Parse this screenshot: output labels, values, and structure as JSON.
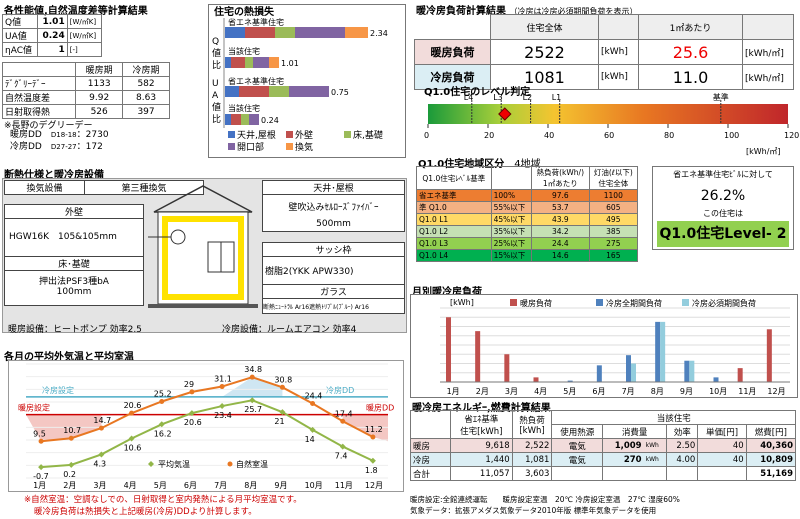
{
  "perf": {
    "title": "各性能値,自然温度差等計算結果",
    "rows": [
      {
        "k": "Q値",
        "v": "1.01",
        "u": "[W/㎡K]"
      },
      {
        "k": "UA値",
        "v": "0.24",
        "u": "[W/㎡K]"
      },
      {
        "k": "ηAC値",
        "v": "1",
        "u": "[-]"
      }
    ],
    "cols": [
      "暖房期",
      "冷房期"
    ],
    "stats": [
      {
        "k": "ﾃﾞｸﾞﾘｰﾃﾞｰ",
        "h": "1133",
        "c": "582"
      },
      {
        "k": "自然温度差",
        "h": "9.92",
        "c": "8.63"
      },
      {
        "k": "日射取得熱",
        "h": "526",
        "c": "397"
      }
    ],
    "note": "※長野のデグリーデー",
    "dd": [
      {
        "k": "暖房DD",
        "s": "D18-18",
        "v": "2730"
      },
      {
        "k": "冷房DD",
        "s": "D27-27",
        "v": "172"
      }
    ]
  },
  "heatloss": {
    "title": "住宅の熱損失",
    "labels": {
      "q": "Q値比",
      "ua": "UA値比",
      "std": "省エネ基準住宅",
      "house": "当該住宅"
    },
    "values": {
      "q_std": "2.34",
      "q_house": "1.01",
      "ua_std": "0.75",
      "ua_house": "0.24"
    },
    "legend": [
      {
        "n": "天井,屋根",
        "c": "#4472c4"
      },
      {
        "n": "外壁",
        "c": "#c0504d"
      },
      {
        "n": "床,基礎",
        "c": "#9bbb59"
      },
      {
        "n": "開口部",
        "c": "#8064a2"
      },
      {
        "n": "換気",
        "c": "#f79646"
      }
    ]
  },
  "load": {
    "title": "暖冷房負荷計算結果",
    "sub": "（冷房は冷房必須期間負荷を表示）",
    "cols": [
      "住宅全体",
      "1㎡あたり"
    ],
    "rows": [
      {
        "k": "暖房負荷",
        "v": "2522",
        "u": "[kWh]",
        "p": "25.6",
        "pu": "[kWh/㎡]"
      },
      {
        "k": "冷房負荷",
        "v": "1081",
        "u": "[kWh]",
        "p": "11.0",
        "pu": "[kWh/㎡]"
      }
    ]
  },
  "level": {
    "title": "Q1.0住宅のレベル判定",
    "marks": [
      "L4",
      "L3",
      "L2",
      "L1",
      "基準"
    ],
    "ticks": [
      "0",
      "20",
      "40",
      "60",
      "80",
      "100",
      "120"
    ],
    "unit": "[kWh/㎡]",
    "value": 25.6
  },
  "lvtable": {
    "title": "Q1.0住宅地域区分",
    "region": "4地域",
    "h1": "Q1.0住宅ﾚﾍﾞﾙ基準",
    "h2": "熱負荷(kWh/)",
    "h2b": "1㎡あたり",
    "h3": "灯油(ℓ以下)",
    "h3b": "住宅全体",
    "rows": [
      {
        "n": "省エネ基準",
        "p": "100%",
        "v": "97.6",
        "o": "1100",
        "bg": "#ed7d31"
      },
      {
        "n": "準 Q1.0",
        "p": "55%以下",
        "v": "53.7",
        "o": "605",
        "bg": "#f4b183"
      },
      {
        "n": "Q1.0 L1",
        "p": "45%以下",
        "v": "43.9",
        "o": "495",
        "bg": "#ffd966"
      },
      {
        "n": "Q1.0 L2",
        "p": "35%以下",
        "v": "34.2",
        "o": "385",
        "bg": "#c5e0b4"
      },
      {
        "n": "Q1.0 L3",
        "p": "25%以下",
        "v": "24.4",
        "o": "275",
        "bg": "#92d050"
      },
      {
        "n": "Q1.0 L4",
        "p": "15%以下",
        "v": "14.6",
        "o": "165",
        "bg": "#00b050"
      }
    ]
  },
  "ratio": {
    "l1": "省エネ基準住宅ﾋﾞﾙに対して",
    "val": "26.2%",
    "l2": "この住宅は",
    "res": "Q1.0住宅Level- 2"
  },
  "spec": {
    "title": "断熱仕様と暖冷房設備",
    "vent": "換気設備",
    "vent_v": "第三種換気",
    "wall": "外壁",
    "wall_v": "HGW16K　105&105mm",
    "floor": "床･基礎",
    "floor_v": "押出法PSF3種bA",
    "floor_v2": "100mm",
    "roof": "天井･屋根",
    "roof_v": "壁吹込みｾﾙﾛｰｽﾞﾌｧｲﾊﾞｰ",
    "roof_v2": "500mm",
    "sash": "サッシ枠",
    "sash_v": "樹脂2(YKK APW330)",
    "glass": "ガラス",
    "glass_v": "断熱ﾆｭｰﾄﾗﾙ Ar16遮熱ﾄﾘﾌﾟﾙ(ﾌﾞﾙｰ) Ar16",
    "heat_eq": "暖房設備：ヒートポンプ  効率2.5",
    "cool_eq": "冷房設備：ルームエアコン  効率4"
  },
  "monthly": {
    "title": "月別暖冷房負荷",
    "unit": "[kWh]",
    "legend": [
      "暖房負荷",
      "冷房全期間負荷",
      "冷房必須期間負荷"
    ],
    "chart_data": {
      "type": "bar",
      "categories": [
        "1月",
        "2月",
        "3月",
        "4月",
        "5月",
        "6月",
        "7月",
        "8月",
        "9月",
        "10月",
        "11月",
        "12月"
      ],
      "series": [
        {
          "name": "暖房負荷",
          "values": [
            700,
            550,
            300,
            50,
            0,
            0,
            0,
            0,
            0,
            0,
            150,
            570
          ]
        },
        {
          "name": "冷房全期間負荷",
          "values": [
            0,
            0,
            0,
            0,
            15,
            180,
            290,
            650,
            230,
            50,
            0,
            0
          ]
        },
        {
          "name": "冷房必須期間負荷",
          "values": [
            0,
            0,
            0,
            0,
            0,
            0,
            200,
            650,
            230,
            0,
            0,
            0
          ]
        }
      ],
      "ylim": [
        0,
        800
      ]
    }
  },
  "temps": {
    "title": "各月の平均外気温と平均室温",
    "cool_op": "冷房設定",
    "heat_op": "暖房設定",
    "cool_dd": "冷房DD",
    "heat_dd": "暖房DD",
    "legend": [
      "平均気温",
      "自然室温"
    ],
    "chart_data": {
      "type": "line",
      "categories": [
        "1月",
        "2月",
        "3月",
        "4月",
        "5月",
        "6月",
        "7月",
        "8月",
        "9月",
        "10月",
        "11月",
        "12月"
      ],
      "series": [
        {
          "name": "平均気温",
          "values": [
            -0.7,
            0.2,
            4.3,
            10.6,
            16.2,
            20.6,
            23.4,
            25.7,
            21.0,
            14.0,
            7.4,
            1.8
          ]
        },
        {
          "name": "自然室温",
          "values": [
            9.5,
            10.7,
            14.7,
            20.6,
            25.2,
            29.0,
            31.1,
            34.8,
            30.8,
            24.4,
            17.4,
            11.2
          ]
        }
      ],
      "ylim": [
        -5,
        40
      ]
    },
    "note1": "※自然室温：空調なしでの、日射取得と室内発熱による月平均室温です。",
    "note2": "暖冷房負荷は熱損失と上記暖房(冷房)DDより計算します。"
  },
  "energy": {
    "title": "暖冷房エネルギｰ,燃費計算結果",
    "h_std": "省ｴﾈ基準",
    "h_std2": "住宅[kWh]",
    "h_load": "熱負荷",
    "h_load2": "[kWh]",
    "h_house": "当該住宅",
    "h_src": "使用熱源",
    "h_use": "消費量",
    "h_eff": "効率",
    "h_price": "単価[円]",
    "h_cost": "燃費[円]",
    "rows": [
      {
        "k": "暖房",
        "s": "9,618",
        "l": "2,522",
        "src": "電気",
        "use": "1,009",
        "uu": "kWh",
        "eff": "2.50",
        "price": "40",
        "cost": "40,360",
        "bg": "#f2dcdb"
      },
      {
        "k": "冷房",
        "s": "1,440",
        "l": "1,081",
        "src": "電気",
        "use": "270",
        "uu": "kWh",
        "eff": "4.00",
        "price": "40",
        "cost": "10,809",
        "bg": "#dbeef4"
      },
      {
        "k": "合計",
        "s": "11,057",
        "l": "3,603",
        "src": "",
        "use": "",
        "uu": "",
        "eff": "",
        "price": "",
        "cost": "51,169",
        "bg": "#fff"
      }
    ],
    "f1": "暖房設定:全館連続運転　　暖房設定室温　20℃ 冷房設定室温　27℃ 湿度60%",
    "f2": "気象データ：拡張アメダス気象データ2010年版 標準年気象データを使用"
  }
}
